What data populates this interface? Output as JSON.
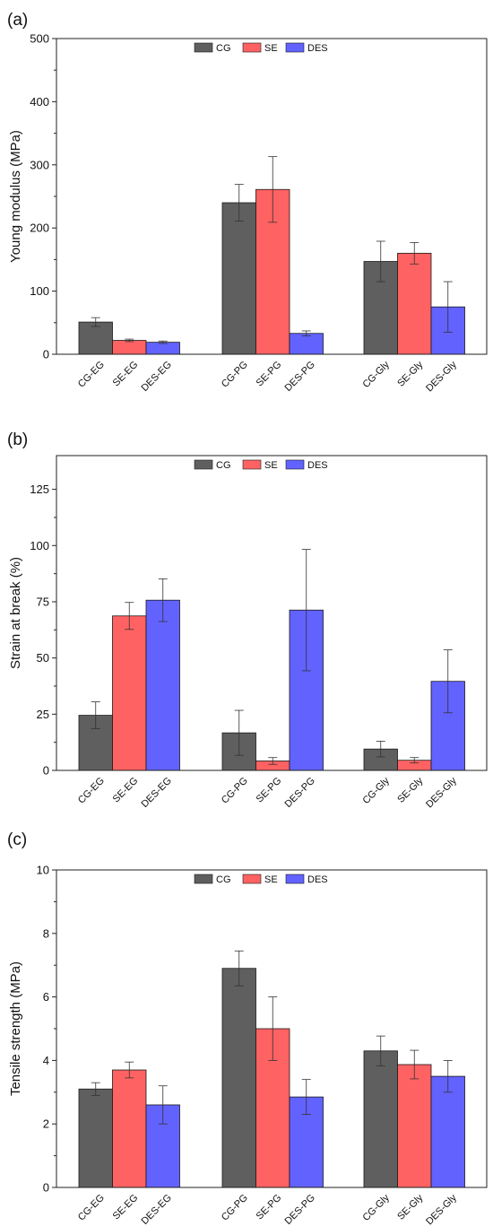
{
  "colors": {
    "CG": "#5f5f5f",
    "SE": "#ff6262",
    "DES": "#6262ff"
  },
  "chart_data": [
    {
      "type": "bar",
      "panel": "(a)",
      "ylabel": "Young modulus (MPa)",
      "ylim": [
        0,
        500
      ],
      "yticks": [
        0,
        100,
        200,
        300,
        400,
        500
      ],
      "legend": {
        "entries": [
          "CG",
          "SE",
          "DES"
        ],
        "placement": "top-center"
      },
      "groups": [
        {
          "categories": [
            "CG-EG",
            "SE-EG",
            "DES-EG"
          ],
          "series": [
            "CG",
            "SE",
            "DES"
          ],
          "values": [
            51,
            22,
            19
          ],
          "errors": [
            7,
            2,
            2
          ]
        },
        {
          "categories": [
            "CG-PG",
            "SE-PG",
            "DES-PG"
          ],
          "series": [
            "CG",
            "SE",
            "DES"
          ],
          "values": [
            240,
            261,
            33
          ],
          "errors": [
            29,
            52,
            4
          ]
        },
        {
          "categories": [
            "CG-Gly",
            "SE-Gly",
            "DES-Gly"
          ],
          "series": [
            "CG",
            "SE",
            "DES"
          ],
          "values": [
            147,
            160,
            75
          ],
          "errors": [
            32,
            17,
            40
          ]
        }
      ]
    },
    {
      "type": "bar",
      "panel": "(b)",
      "ylabel": "Strain at break (%)",
      "ylim": [
        0,
        140
      ],
      "yticks": [
        0,
        25,
        50,
        75,
        100,
        125
      ],
      "legend": {
        "entries": [
          "CG",
          "SE",
          "DES"
        ],
        "placement": "top-center"
      },
      "groups": [
        {
          "categories": [
            "CG-EG",
            "SE-EG",
            "DES-EG"
          ],
          "series": [
            "CG",
            "SE",
            "DES"
          ],
          "values": [
            24.5,
            68.7,
            75.7
          ],
          "errors": [
            6,
            6,
            9.5
          ]
        },
        {
          "categories": [
            "CG-PG",
            "SE-PG",
            "DES-PG"
          ],
          "series": [
            "CG",
            "SE",
            "DES"
          ],
          "values": [
            16.7,
            4.2,
            71.3
          ],
          "errors": [
            10,
            1.5,
            27
          ]
        },
        {
          "categories": [
            "CG-Gly",
            "SE-Gly",
            "DES-Gly"
          ],
          "series": [
            "CG",
            "SE",
            "DES"
          ],
          "values": [
            9.5,
            4.5,
            39.6
          ],
          "errors": [
            3.5,
            1.2,
            14
          ]
        }
      ]
    },
    {
      "type": "bar",
      "panel": "(c)",
      "ylabel": "Tensile strength (MPa)",
      "ylim": [
        0,
        10
      ],
      "yticks": [
        0,
        2,
        4,
        6,
        8,
        10
      ],
      "legend": {
        "entries": [
          "CG",
          "SE",
          "DES"
        ],
        "placement": "top-center"
      },
      "groups": [
        {
          "categories": [
            "CG-EG",
            "SE-EG",
            "DES-EG"
          ],
          "series": [
            "CG",
            "SE",
            "DES"
          ],
          "values": [
            3.1,
            3.7,
            2.6
          ],
          "errors": [
            0.2,
            0.25,
            0.6
          ]
        },
        {
          "categories": [
            "CG-PG",
            "SE-PG",
            "DES-PG"
          ],
          "series": [
            "CG",
            "SE",
            "DES"
          ],
          "values": [
            6.9,
            5.0,
            2.85
          ],
          "errors": [
            0.55,
            1.0,
            0.55
          ]
        },
        {
          "categories": [
            "CG-Gly",
            "SE-Gly",
            "DES-Gly"
          ],
          "series": [
            "CG",
            "SE",
            "DES"
          ],
          "values": [
            4.3,
            3.87,
            3.5
          ],
          "errors": [
            0.47,
            0.45,
            0.5
          ]
        }
      ]
    }
  ]
}
